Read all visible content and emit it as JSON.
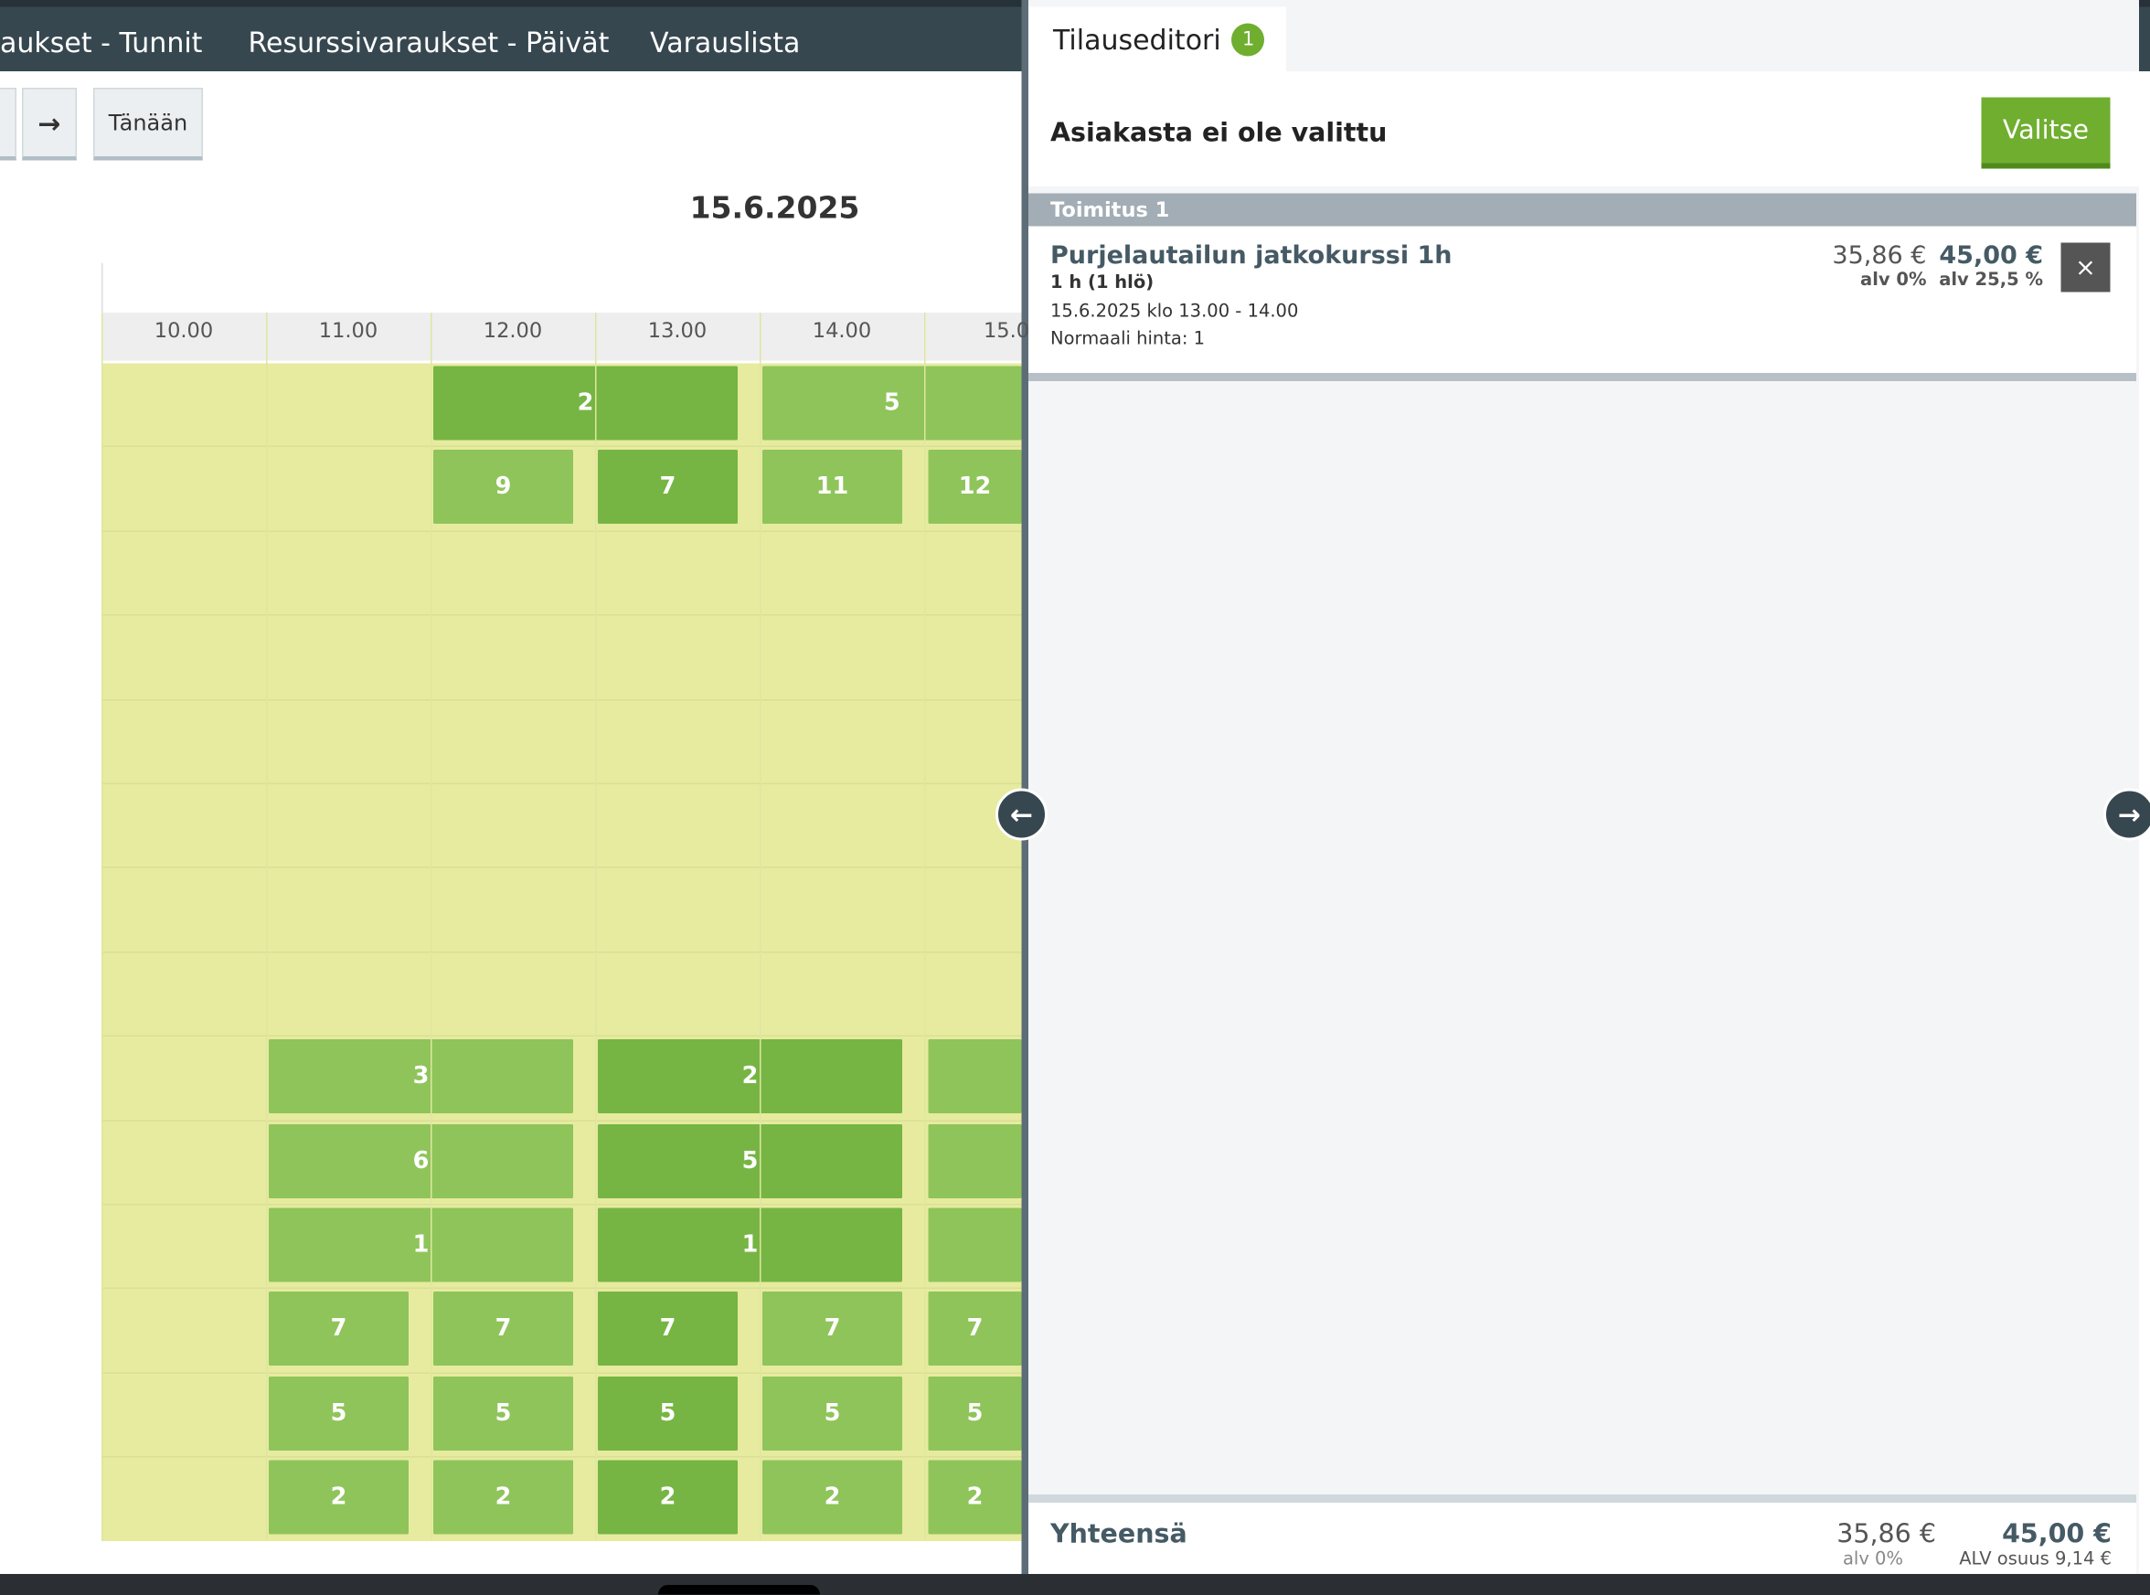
{
  "nav": {
    "items": [
      "aukset - Tunnit",
      "Resurssivaraukset - Päivät",
      "Varauslista"
    ]
  },
  "toolbar": {
    "next": "→",
    "today": "Tänään"
  },
  "calendar": {
    "date": "15.6.2025",
    "hours": [
      "10.00",
      "11.00",
      "12.00",
      "13.00",
      "14.00",
      "15.0"
    ],
    "blocks": [
      [
        "2",
        "5"
      ],
      [
        "9",
        "7",
        "11",
        "12"
      ],
      [],
      [],
      [],
      [],
      [],
      [],
      [
        "3",
        "2"
      ],
      [
        "6",
        "5"
      ],
      [
        "1",
        "1"
      ],
      [
        "7",
        "7",
        "7",
        "7",
        "7"
      ],
      [
        "5",
        "5",
        "5",
        "5",
        "5"
      ],
      [
        "2",
        "2",
        "2",
        "2",
        "2"
      ]
    ]
  },
  "panel": {
    "tab": "Tilauseditori",
    "badge": "1",
    "customer": "Asiakasta ei ole valittu",
    "select_button": "Valitse",
    "section": "Toimitus 1",
    "item": {
      "title": "Purjelautailun jatkokurssi 1h",
      "quantity": "1 h (1 hlö)",
      "time": "15.6.2025 klo 13.00 - 14.00",
      "price_type": "Normaali hinta: 1",
      "net": "35,86 €",
      "net_note": "alv 0%",
      "gross": "45,00 €",
      "gross_note": "alv 25,5 %",
      "remove": "×"
    },
    "total": {
      "label": "Yhteensä",
      "net": "35,86 €",
      "net_note": "alv 0%",
      "gross": "45,00 €",
      "gross_note": "ALV osuus 9,14 €"
    }
  }
}
